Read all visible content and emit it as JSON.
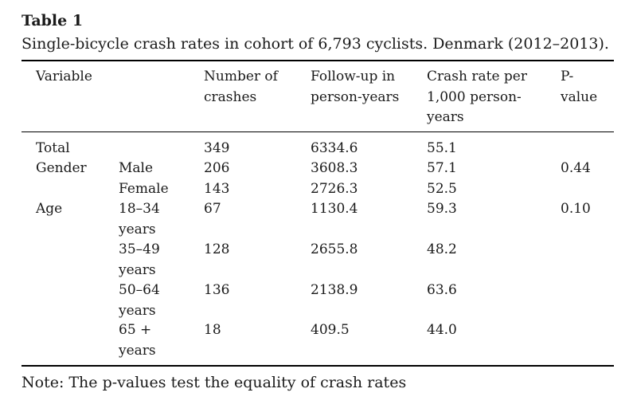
{
  "table": {
    "label": "Table 1",
    "caption": "Single-bicycle crash rates in cohort of 6,793 cyclists. Denmark (2012–2013).",
    "headers": {
      "variable": "Variable",
      "crashes": [
        "Number of",
        "crashes"
      ],
      "followup": [
        "Follow-up in",
        "person-years"
      ],
      "rate": [
        "Crash rate per",
        "1,000 person-",
        "years"
      ],
      "pvalue": [
        "P-",
        "value"
      ]
    },
    "rows": [
      {
        "variable": "Total",
        "sub": [],
        "crashes": "349",
        "followup": "6334.6",
        "rate": "55.1",
        "pvalue": ""
      },
      {
        "variable": "Gender",
        "sub": [
          "Male"
        ],
        "crashes": "206",
        "followup": "3608.3",
        "rate": "57.1",
        "pvalue": "0.44"
      },
      {
        "variable": "",
        "sub": [
          "Female"
        ],
        "crashes": "143",
        "followup": "2726.3",
        "rate": "52.5",
        "pvalue": ""
      },
      {
        "variable": "Age",
        "sub": [
          "18–34",
          "years"
        ],
        "crashes": "67",
        "followup": "1130.4",
        "rate": "59.3",
        "pvalue": "0.10"
      },
      {
        "variable": "",
        "sub": [
          "35–49",
          "years"
        ],
        "crashes": "128",
        "followup": "2655.8",
        "rate": "48.2",
        "pvalue": ""
      },
      {
        "variable": "",
        "sub": [
          "50–64",
          "years"
        ],
        "crashes": "136",
        "followup": "2138.9",
        "rate": "63.6",
        "pvalue": ""
      },
      {
        "variable": "",
        "sub": [
          "65 +",
          "years"
        ],
        "crashes": "18",
        "followup": "409.5",
        "rate": "44.0",
        "pvalue": ""
      }
    ],
    "note": "Note: The p-values test the equality of crash rates"
  }
}
